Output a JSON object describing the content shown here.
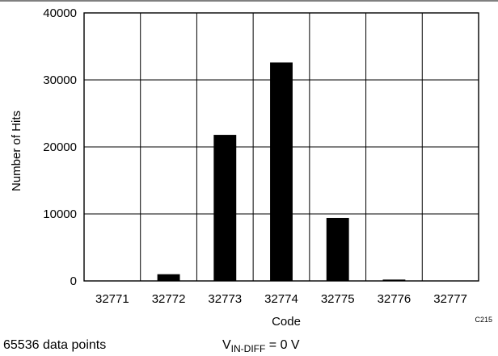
{
  "chart_data": {
    "type": "bar",
    "title": "",
    "xlabel": "Code",
    "ylabel": "Number of Hits",
    "categories": [
      "32771",
      "32772",
      "32773",
      "32774",
      "32775",
      "32776",
      "32777"
    ],
    "values": [
      0,
      1000,
      21800,
      32600,
      9400,
      200,
      0
    ],
    "ylim": [
      0,
      40000
    ],
    "yticks": [
      "0",
      "10000",
      "20000",
      "30000",
      "40000"
    ],
    "grid": true,
    "legend": "none",
    "bar_color": "#000000"
  },
  "notes": {
    "data_points": "65536 data points",
    "vin_prefix": "V",
    "vin_subscript": "IN-DIFF",
    "vin_suffix": " = 0 V",
    "code_id": "C215"
  }
}
